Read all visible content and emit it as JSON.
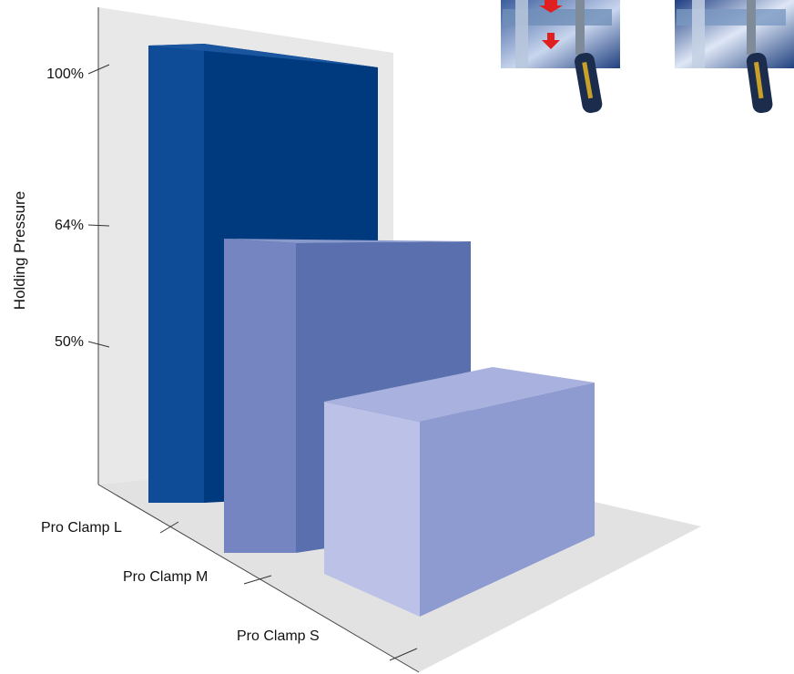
{
  "chart_data": {
    "type": "bar",
    "title": "",
    "xlabel": "",
    "ylabel": "Holding Pressure",
    "categories": [
      "Pro Clamp L",
      "Pro Clamp M",
      "Pro Clamp S"
    ],
    "values": [
      100,
      64,
      50
    ],
    "yticks": [
      100,
      64,
      50
    ],
    "ytick_labels": [
      "100%",
      "64%",
      "50%"
    ],
    "ylim": [
      0,
      100
    ],
    "unit": "%",
    "grid": false,
    "legend": "none",
    "bar_colors": [
      {
        "front": "#003a7e",
        "side": "#0e4c98",
        "top": "#1a55a0"
      },
      {
        "front": "#5a6fad",
        "side": "#7585c1",
        "top": "#8a99cc"
      },
      {
        "front": "#8e9bd0",
        "side": "#bcc1e8",
        "top": "#a9b1de"
      }
    ]
  },
  "images": {
    "photo_left": "clamp-before-photo",
    "photo_right": "clamp-after-photo"
  }
}
